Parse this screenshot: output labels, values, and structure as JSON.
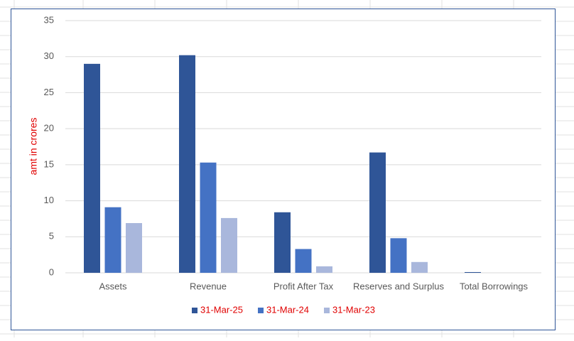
{
  "chart_data": {
    "type": "bar",
    "y_label": "amt in crores",
    "categories": [
      "Assets",
      "Revenue",
      "Profit After Tax",
      "Reserves and Surplus",
      "Total Borrowings"
    ],
    "series": [
      {
        "name": "31-Mar-25",
        "color": "#2f5597",
        "values": [
          29.0,
          30.2,
          8.4,
          16.7,
          0.1
        ]
      },
      {
        "name": "31-Mar-24",
        "color": "#4472c4",
        "values": [
          9.1,
          15.3,
          3.3,
          4.8,
          0
        ]
      },
      {
        "name": "31-Mar-23",
        "color": "#a9b7dc",
        "values": [
          6.9,
          7.6,
          0.9,
          1.5,
          0
        ]
      }
    ],
    "ylim": [
      0,
      35
    ],
    "yticks": [
      0,
      5,
      10,
      15,
      20,
      25,
      30,
      35
    ],
    "grid": true,
    "legend": "bottom"
  }
}
